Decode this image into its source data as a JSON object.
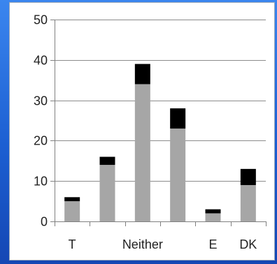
{
  "chart_data": {
    "type": "bar",
    "stacked": true,
    "title": "",
    "xlabel": "",
    "ylabel": "",
    "ylim": [
      0,
      50
    ],
    "yticks": [
      0,
      10,
      20,
      30,
      40,
      50
    ],
    "grid": true,
    "legend": "none",
    "categories": [
      "T",
      "",
      "Neither",
      "",
      "E",
      "DK"
    ],
    "series": [
      {
        "values": [
          5,
          14,
          34,
          23,
          2,
          9
        ],
        "color": "#a6a6a6"
      },
      {
        "values": [
          1,
          2,
          5,
          5,
          1,
          4
        ],
        "color": "#000000"
      }
    ],
    "colors": {
      "background": "#1f63d6",
      "panel": "#ffffff",
      "grid": "#8c8c8c",
      "axis": "#808080",
      "text": "#222222"
    }
  }
}
